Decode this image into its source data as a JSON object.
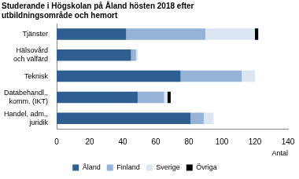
{
  "chart_data": {
    "type": "bar",
    "orientation": "horizontal",
    "stacked": true,
    "title": "Studerande i Högskolan på Åland hösten 2018 efter utbildningsområde och hemort",
    "x_label": "Antal",
    "categories": [
      "Tjänster",
      "Hälsovård och välfärd",
      "Teknisk",
      "Databehandl., komm. (IKT)",
      "Handel, adm., juridik"
    ],
    "series": [
      {
        "name": "Åland",
        "color": "#2f5f91",
        "values": [
          42,
          45,
          75,
          49,
          81
        ]
      },
      {
        "name": "Finland",
        "color": "#95b3d7",
        "values": [
          48,
          3,
          37,
          16,
          8
        ]
      },
      {
        "name": "Sverige",
        "color": "#dce6f2",
        "values": [
          30,
          1,
          8,
          2,
          6
        ]
      },
      {
        "name": "Övriga",
        "color": "#000000",
        "values": [
          2,
          0,
          0,
          2,
          0
        ]
      }
    ],
    "xlim": [
      0,
      140
    ],
    "xticks": [
      0,
      20,
      40,
      60,
      80,
      100,
      120,
      140
    ],
    "grid": false,
    "legend": "bottom"
  }
}
